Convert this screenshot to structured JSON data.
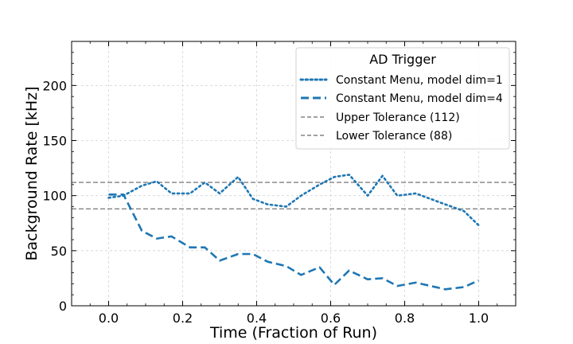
{
  "chart_data": {
    "type": "line",
    "title": "",
    "xlabel": "Time (Fraction of Run)",
    "ylabel": "Background Rate [kHz]",
    "xlim": [
      -0.1,
      1.1
    ],
    "ylim": [
      0,
      240
    ],
    "xticks": [
      0.0,
      0.2,
      0.4,
      0.6,
      0.8,
      1.0
    ],
    "xtick_labels": [
      "0.0",
      "0.2",
      "0.4",
      "0.6",
      "0.8",
      "1.0"
    ],
    "yticks": [
      0,
      50,
      100,
      150,
      200
    ],
    "ytick_labels": [
      "0",
      "50",
      "100",
      "150",
      "200"
    ],
    "grid": true,
    "legend": {
      "title": "AD Trigger",
      "placement": "upper right"
    },
    "series": [
      {
        "name": "Constant Menu, model dim=1",
        "style": "dotted",
        "color": "#1f77b4",
        "x": [
          0.0,
          0.04,
          0.09,
          0.13,
          0.17,
          0.22,
          0.26,
          0.3,
          0.35,
          0.39,
          0.43,
          0.48,
          0.52,
          0.57,
          0.61,
          0.65,
          0.7,
          0.74,
          0.78,
          0.83,
          0.87,
          0.91,
          0.96,
          1.0
        ],
        "y": [
          98,
          100,
          109,
          113,
          102,
          102,
          112,
          102,
          117,
          97,
          92,
          90,
          100,
          110,
          117,
          119,
          100,
          118,
          100,
          102,
          97,
          92,
          86,
          73
        ]
      },
      {
        "name": "Constant Menu, model dim=4",
        "style": "dashed",
        "color": "#1f77b4",
        "x": [
          0.0,
          0.04,
          0.09,
          0.13,
          0.17,
          0.22,
          0.26,
          0.3,
          0.35,
          0.39,
          0.43,
          0.48,
          0.52,
          0.57,
          0.61,
          0.65,
          0.7,
          0.74,
          0.78,
          0.83,
          0.87,
          0.91,
          0.96,
          1.0
        ],
        "y": [
          101,
          101,
          68,
          61,
          63,
          53,
          53,
          41,
          47,
          47,
          40,
          36,
          28,
          35,
          19,
          32,
          24,
          25,
          18,
          21,
          18,
          15,
          17,
          23
        ]
      }
    ],
    "hlines": [
      {
        "name": "Upper Tolerance (112)",
        "y": 112,
        "color": "#808080",
        "style": "dashed"
      },
      {
        "name": "Lower Tolerance (88)",
        "y": 88,
        "color": "#808080",
        "style": "dashed"
      }
    ]
  }
}
